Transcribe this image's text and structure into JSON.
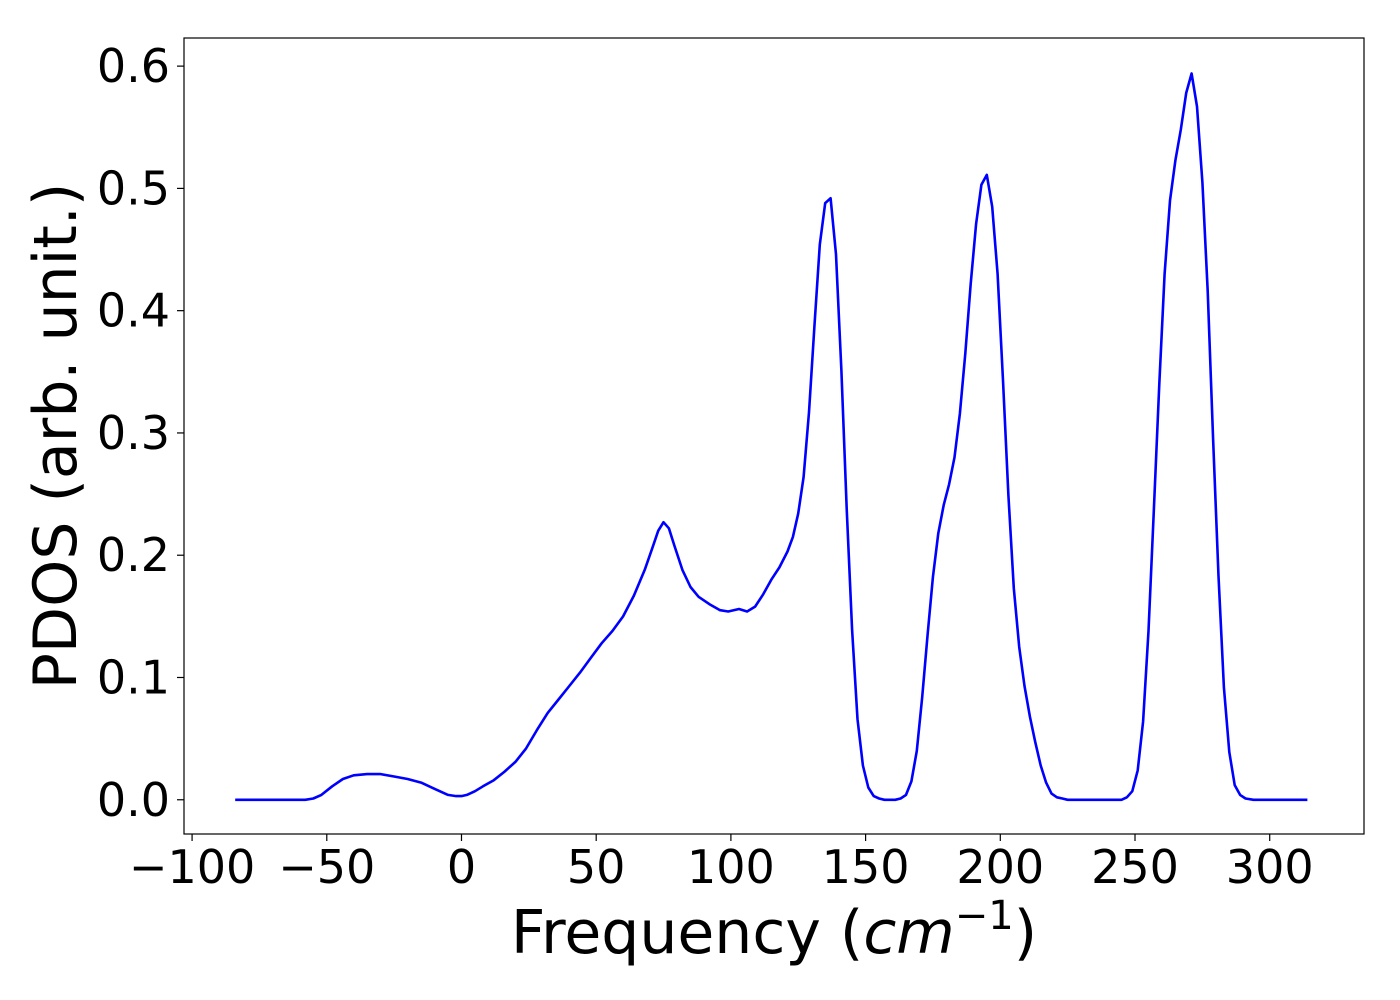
{
  "chart_data": {
    "type": "line",
    "title": "",
    "xlabel_main": "Frequency (",
    "xlabel_math": "cm",
    "xlabel_sup": "−1",
    "xlabel_close": ")",
    "ylabel": "PDOS (arb. unit.)",
    "xlim": [
      -103,
      335
    ],
    "ylim": [
      -0.028,
      0.623
    ],
    "xticks": [
      -100,
      -50,
      0,
      50,
      100,
      150,
      200,
      250,
      300
    ],
    "xtick_labels": [
      "−100",
      "−50",
      "0",
      "50",
      "100",
      "150",
      "200",
      "250",
      "300"
    ],
    "yticks": [
      0.0,
      0.1,
      0.2,
      0.3,
      0.4,
      0.5,
      0.6
    ],
    "ytick_labels": [
      "0.0",
      "0.1",
      "0.2",
      "0.3",
      "0.4",
      "0.5",
      "0.6"
    ],
    "grid": false,
    "series": [
      {
        "color": "#0000ff",
        "x": [
          -84,
          -75,
          -65,
          -58,
          -55,
          -52,
          -48,
          -44,
          -40,
          -35,
          -30,
          -25,
          -20,
          -15,
          -10,
          -5,
          -2,
          0,
          2,
          5,
          8,
          12,
          16,
          20,
          24,
          28,
          32,
          36,
          40,
          44,
          48,
          52,
          56,
          60,
          64,
          68,
          71,
          73,
          75,
          77,
          79,
          82,
          85,
          88,
          92,
          96,
          99,
          103,
          106,
          109,
          112,
          115,
          118,
          121,
          123,
          125,
          127,
          129,
          131,
          133,
          135,
          137,
          139,
          141,
          143,
          145,
          147,
          149,
          151,
          153,
          155,
          157,
          159,
          161,
          163,
          165,
          167,
          169,
          171,
          173,
          175,
          177,
          179,
          181,
          183,
          185,
          187,
          189,
          191,
          193,
          195,
          197,
          199,
          201,
          203,
          205,
          207,
          209,
          211,
          213,
          215,
          217,
          219,
          221,
          223,
          225,
          227,
          230,
          235,
          240,
          245,
          247,
          249,
          251,
          253,
          255,
          257,
          259,
          261,
          263,
          265,
          267,
          269,
          271,
          273,
          275,
          277,
          279,
          281,
          283,
          285,
          287,
          289,
          291,
          294,
          300,
          314
        ],
        "y": [
          0.0,
          0.0,
          0.0,
          0.0,
          0.001,
          0.004,
          0.011,
          0.017,
          0.02,
          0.021,
          0.021,
          0.019,
          0.017,
          0.014,
          0.009,
          0.004,
          0.003,
          0.003,
          0.004,
          0.007,
          0.011,
          0.016,
          0.023,
          0.031,
          0.042,
          0.057,
          0.071,
          0.082,
          0.093,
          0.104,
          0.116,
          0.128,
          0.138,
          0.15,
          0.167,
          0.188,
          0.207,
          0.22,
          0.227,
          0.222,
          0.208,
          0.188,
          0.174,
          0.166,
          0.16,
          0.155,
          0.154,
          0.156,
          0.154,
          0.158,
          0.168,
          0.18,
          0.19,
          0.203,
          0.215,
          0.234,
          0.264,
          0.317,
          0.387,
          0.454,
          0.488,
          0.492,
          0.446,
          0.351,
          0.238,
          0.139,
          0.066,
          0.028,
          0.01,
          0.003,
          0.001,
          0.0,
          0.0,
          0.0,
          0.001,
          0.004,
          0.015,
          0.04,
          0.084,
          0.135,
          0.182,
          0.218,
          0.241,
          0.258,
          0.28,
          0.316,
          0.365,
          0.422,
          0.471,
          0.503,
          0.511,
          0.485,
          0.43,
          0.343,
          0.249,
          0.173,
          0.125,
          0.093,
          0.068,
          0.047,
          0.028,
          0.014,
          0.005,
          0.002,
          0.001,
          0.0,
          0.0,
          0.0,
          0.0,
          0.0,
          0.0,
          0.002,
          0.007,
          0.024,
          0.064,
          0.138,
          0.238,
          0.34,
          0.43,
          0.49,
          0.523,
          0.548,
          0.578,
          0.594,
          0.567,
          0.505,
          0.416,
          0.295,
          0.183,
          0.092,
          0.039,
          0.012,
          0.004,
          0.001,
          0.0,
          0.0,
          0.0
        ]
      }
    ]
  }
}
